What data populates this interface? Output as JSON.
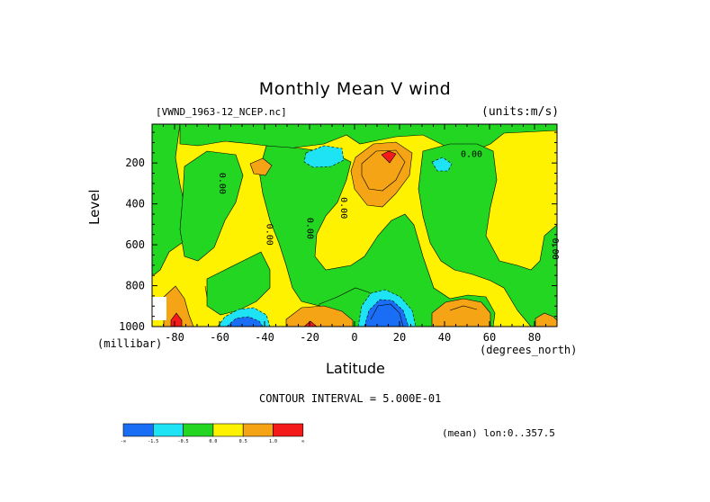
{
  "title": "Monthly Mean V wind",
  "file_label": "[VWND_1963-12_NCEP.nc]",
  "units_label": "(units:m/s)",
  "contour_interval": "CONTOUR INTERVAL = 5.000E-01",
  "mean_label": "(mean) lon:0..357.5",
  "chart_data": {
    "type": "heatmap",
    "title": "Monthly Mean V wind",
    "xlabel": "Latitude",
    "x_units": "(degrees_north)",
    "ylabel": "Level",
    "y_units": "(millibar)",
    "xlim": [
      -90,
      90
    ],
    "ylim": [
      1000,
      10
    ],
    "x_ticks": [
      -80,
      -60,
      -40,
      -20,
      0,
      20,
      40,
      60,
      80
    ],
    "y_ticks": [
      200,
      400,
      600,
      800,
      1000
    ],
    "contour_labels": [
      {
        "text": "0.00",
        "lat": -60,
        "level": 300
      },
      {
        "text": "0.00",
        "lat": -39,
        "level": 550
      },
      {
        "text": "0.00",
        "lat": -21,
        "level": 520
      },
      {
        "text": "0.00",
        "lat": -6,
        "level": 420
      },
      {
        "text": "0.00",
        "lat": 52,
        "level": 170
      },
      {
        "text": "0.00",
        "lat": 88,
        "level": 620
      }
    ],
    "colorbar": {
      "colors": [
        "#1a6ef5",
        "#1de3f5",
        "#22d622",
        "#fff200",
        "#f5a416",
        "#f51a1a"
      ],
      "tick_labels": [
        "-∞",
        "-1.5",
        "-0.5",
        "0.0",
        "0.5",
        "1.0",
        "∞"
      ]
    }
  }
}
